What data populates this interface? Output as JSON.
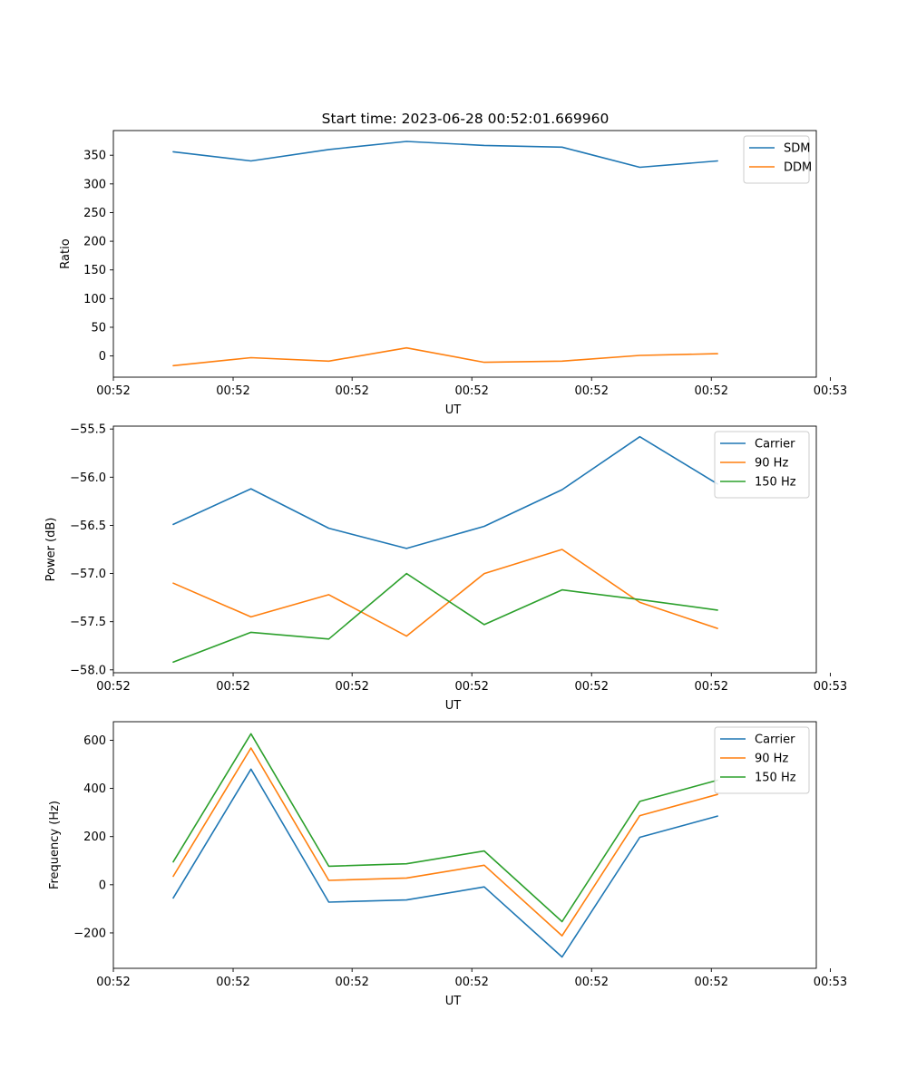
{
  "figure": {
    "title": "Start time: 2023-06-28 00:52:01.669960"
  },
  "chart_data": [
    {
      "type": "line",
      "xlabel": "UT",
      "ylabel": "Ratio",
      "x": [
        1,
        2,
        3,
        4,
        5,
        6,
        7,
        8
      ],
      "xlim": [
        0.23,
        9.27
      ],
      "x_ticks": [
        {
          "pos": 0.23,
          "label": "00:52"
        },
        {
          "pos": 1.77,
          "label": "00:52"
        },
        {
          "pos": 3.3,
          "label": "00:52"
        },
        {
          "pos": 4.84,
          "label": "00:52"
        },
        {
          "pos": 6.38,
          "label": "00:52"
        },
        {
          "pos": 7.92,
          "label": "00:52"
        },
        {
          "pos": 9.45,
          "label": "00:53"
        }
      ],
      "ylim": [
        -37,
        393
      ],
      "y_ticks": [
        0,
        50,
        100,
        150,
        200,
        250,
        300,
        350
      ],
      "y_tick_labels": [
        "0",
        "50",
        "100",
        "150",
        "200",
        "250",
        "300",
        "350"
      ],
      "legend": "top-right",
      "series": [
        {
          "name": "SDM",
          "color": "#1f77b4",
          "values": [
            356,
            340,
            360,
            374,
            367,
            364,
            329,
            340
          ]
        },
        {
          "name": "DDM",
          "color": "#ff7f0e",
          "values": [
            -17,
            -3,
            -9,
            14,
            -11,
            -9,
            1,
            4
          ]
        }
      ]
    },
    {
      "type": "line",
      "xlabel": "UT",
      "ylabel": "Power (dB)",
      "x": [
        1,
        2,
        3,
        4,
        5,
        6,
        7,
        8
      ],
      "xlim": [
        0.23,
        9.27
      ],
      "x_ticks": [
        {
          "pos": 0.23,
          "label": "00:52"
        },
        {
          "pos": 1.77,
          "label": "00:52"
        },
        {
          "pos": 3.3,
          "label": "00:52"
        },
        {
          "pos": 4.84,
          "label": "00:52"
        },
        {
          "pos": 6.38,
          "label": "00:52"
        },
        {
          "pos": 7.92,
          "label": "00:52"
        },
        {
          "pos": 9.45,
          "label": "00:53"
        }
      ],
      "ylim": [
        -58.03,
        -55.47
      ],
      "y_ticks": [
        -58.0,
        -57.5,
        -57.0,
        -56.5,
        -56.0,
        -55.5
      ],
      "y_tick_labels": [
        "−58.0",
        "−57.5",
        "−57.0",
        "−56.5",
        "−56.0",
        "−55.5"
      ],
      "legend": "top-right",
      "series": [
        {
          "name": "Carrier",
          "color": "#1f77b4",
          "values": [
            -56.49,
            -56.12,
            -56.53,
            -56.74,
            -56.51,
            -56.13,
            -55.58,
            -56.07
          ]
        },
        {
          "name": "90 Hz",
          "color": "#ff7f0e",
          "values": [
            -57.1,
            -57.45,
            -57.22,
            -57.65,
            -57.0,
            -56.75,
            -57.3,
            -57.57
          ]
        },
        {
          "name": "150 Hz",
          "color": "#2ca02c",
          "values": [
            -57.92,
            -57.61,
            -57.68,
            -57.0,
            -57.53,
            -57.17,
            -57.27,
            -57.38
          ]
        }
      ]
    },
    {
      "type": "line",
      "xlabel": "UT",
      "ylabel": "Frequency (Hz)",
      "x": [
        1,
        2,
        3,
        4,
        5,
        6,
        7,
        8
      ],
      "xlim": [
        0.23,
        9.27
      ],
      "x_ticks": [
        {
          "pos": 0.23,
          "label": "00:52"
        },
        {
          "pos": 1.77,
          "label": "00:52"
        },
        {
          "pos": 3.3,
          "label": "00:52"
        },
        {
          "pos": 4.84,
          "label": "00:52"
        },
        {
          "pos": 6.38,
          "label": "00:52"
        },
        {
          "pos": 7.92,
          "label": "00:52"
        },
        {
          "pos": 9.45,
          "label": "00:53"
        }
      ],
      "ylim": [
        -347,
        677
      ],
      "y_ticks": [
        -200,
        0,
        200,
        400,
        600
      ],
      "y_tick_labels": [
        "−200",
        "0",
        "200",
        "400",
        "600"
      ],
      "legend": "top-right",
      "series": [
        {
          "name": "Carrier",
          "color": "#1f77b4",
          "values": [
            -55,
            480,
            -72,
            -63,
            -9,
            -300,
            197,
            285
          ]
        },
        {
          "name": "90 Hz",
          "color": "#ff7f0e",
          "values": [
            35,
            568,
            18,
            28,
            81,
            -212,
            287,
            375
          ]
        },
        {
          "name": "150 Hz",
          "color": "#2ca02c",
          "values": [
            95,
            627,
            77,
            87,
            140,
            -153,
            346,
            434
          ]
        }
      ]
    }
  ]
}
